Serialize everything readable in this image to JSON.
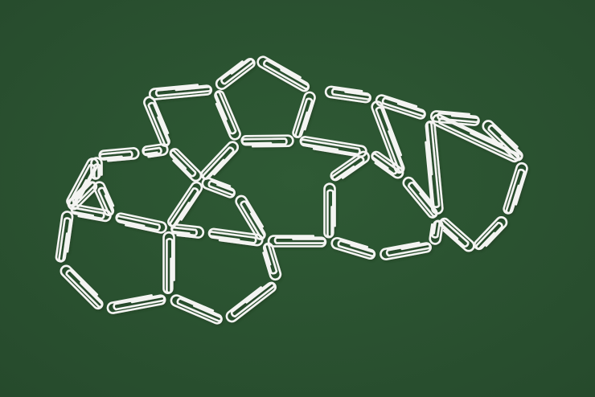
{
  "scene": {
    "subject": "paperclips",
    "background_color": "#2f5a35",
    "background_edge_color": "#264a2c",
    "clip_color": "#f4f4f2",
    "clip_shadow_color": "#1e3a22"
  }
}
